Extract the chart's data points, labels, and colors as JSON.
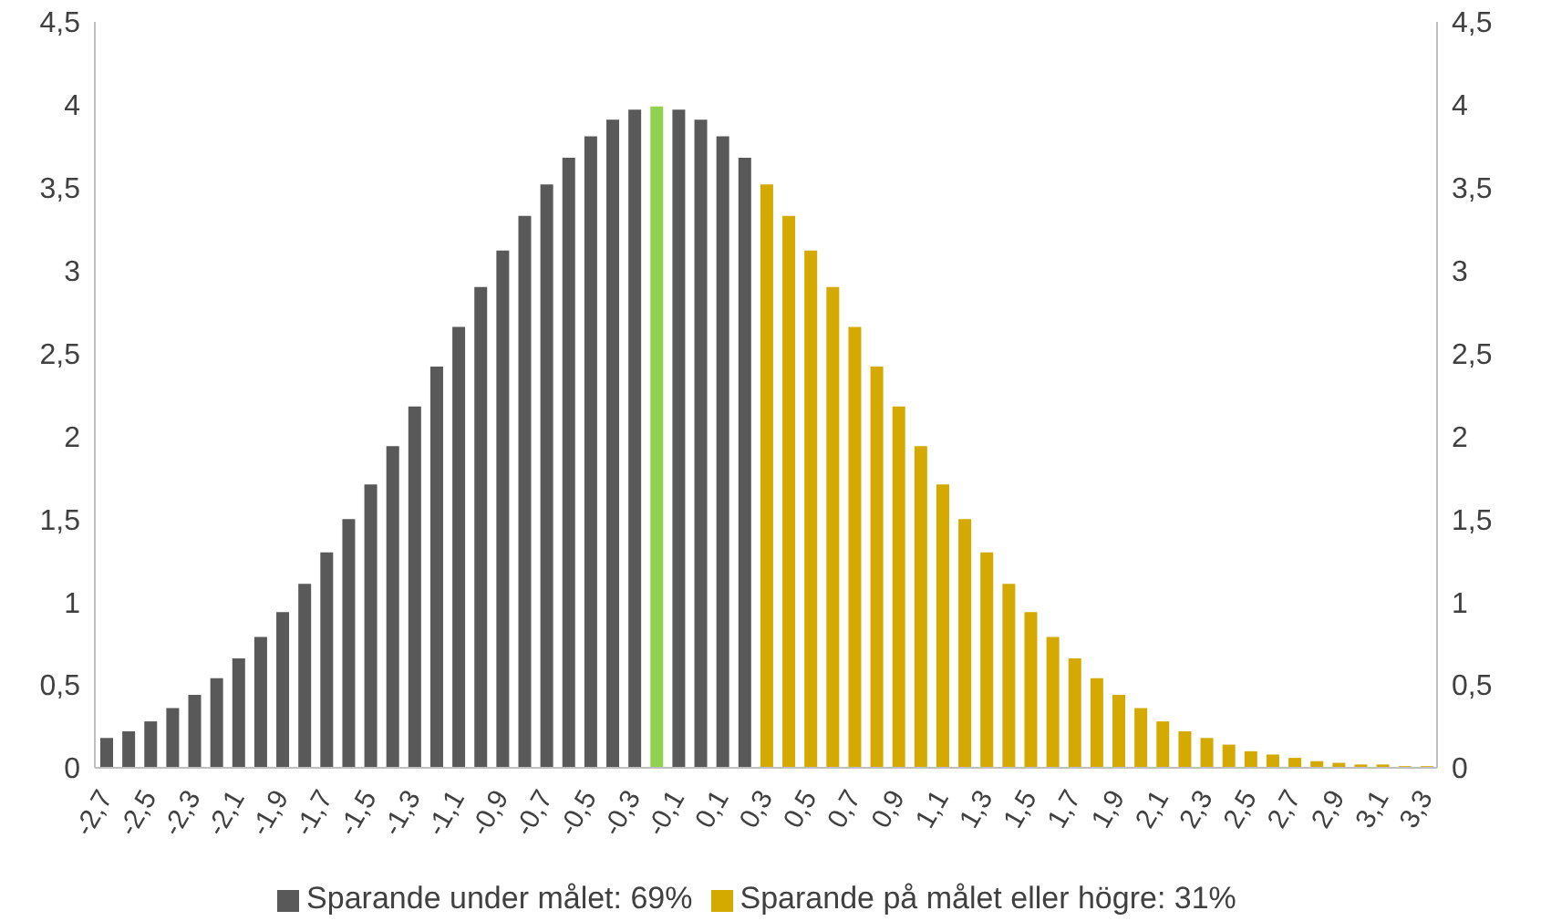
{
  "chart_data": {
    "type": "bar",
    "stacked": true,
    "legend": "bottom",
    "categories": [
      "-2,7",
      null,
      "-2,5",
      null,
      "-2,3",
      null,
      "-2,1",
      null,
      "-1,9",
      null,
      "-1,7",
      null,
      "-1,5",
      null,
      "-1,3",
      null,
      "-1,1",
      null,
      "-0,9",
      null,
      "-0,7",
      null,
      "-0,5",
      null,
      "-0,3",
      null,
      "-0,1",
      null,
      "0,1",
      null,
      "0,3",
      null,
      "0,5",
      null,
      "0,7",
      null,
      "0,9",
      null,
      "1,1",
      null,
      "1,3",
      null,
      "1,5",
      null,
      "1,7",
      null,
      "1,9",
      null,
      "2,1",
      null,
      "2,3",
      null,
      "2,5",
      null,
      "2,7",
      null,
      "2,9",
      null,
      "3,1",
      null,
      "3,3"
    ],
    "series": [
      {
        "name": "Sparande under målet: 69%",
        "color": "#595959",
        "colors": [
          "#595959",
          "#595959",
          "#595959",
          "#595959",
          "#595959",
          "#595959",
          "#595959",
          "#595959",
          "#595959",
          "#595959",
          "#595959",
          "#595959",
          "#595959",
          "#595959",
          "#595959",
          "#595959",
          "#595959",
          "#595959",
          "#595959",
          "#595959",
          "#595959",
          "#595959",
          "#595959",
          "#595959",
          "#595959",
          "#92d050",
          "#595959",
          "#595959",
          "#595959",
          "#595959",
          null,
          null,
          null,
          null,
          null,
          null,
          null,
          null,
          null,
          null,
          null,
          null,
          null,
          null,
          null,
          null,
          null,
          null,
          null,
          null,
          null,
          null,
          null,
          null,
          null,
          null,
          null,
          null,
          null,
          null,
          null
        ],
        "values": [
          0.18,
          0.22,
          0.28,
          0.36,
          0.44,
          0.54,
          0.66,
          0.79,
          0.94,
          1.11,
          1.3,
          1.5,
          1.71,
          1.94,
          2.18,
          2.42,
          2.66,
          2.9,
          3.12,
          3.33,
          3.52,
          3.68,
          3.81,
          3.91,
          3.97,
          3.99,
          3.97,
          3.91,
          3.81,
          3.68,
          null,
          null,
          null,
          null,
          null,
          null,
          null,
          null,
          null,
          null,
          null,
          null,
          null,
          null,
          null,
          null,
          null,
          null,
          null,
          null,
          null,
          null,
          null,
          null,
          null,
          null,
          null,
          null,
          null,
          null,
          null
        ]
      },
      {
        "name": "Sparande på målet eller högre: 31%",
        "color": "#d4aa00",
        "values": [
          null,
          null,
          null,
          null,
          null,
          null,
          null,
          null,
          null,
          null,
          null,
          null,
          null,
          null,
          null,
          null,
          null,
          null,
          null,
          null,
          null,
          null,
          null,
          null,
          null,
          null,
          null,
          null,
          null,
          null,
          3.52,
          3.33,
          3.12,
          2.9,
          2.66,
          2.42,
          2.18,
          1.94,
          1.71,
          1.5,
          1.3,
          1.11,
          0.94,
          0.79,
          0.66,
          0.54,
          0.44,
          0.36,
          0.28,
          0.22,
          0.18,
          0.14,
          0.1,
          0.08,
          0.06,
          0.04,
          0.03,
          0.02,
          0.02,
          0.01,
          0.01
        ]
      }
    ],
    "ylim": [
      0,
      4.5
    ],
    "yticks": [
      0,
      {
        "value": 0.5,
        "label": "0,5"
      },
      1,
      {
        "value": 1.5,
        "label": "1,5"
      },
      2,
      {
        "value": 2.5,
        "label": "2,5"
      },
      3,
      {
        "value": 3.5,
        "label": "3,5"
      },
      4,
      {
        "value": 4.5,
        "label": "4,5"
      }
    ],
    "y2lim": [
      0,
      4.5
    ],
    "y2ticks": [
      0,
      {
        "value": 0.5,
        "label": "0,5"
      },
      1,
      {
        "value": 1.5,
        "label": "1,5"
      },
      2,
      {
        "value": 2.5,
        "label": "2,5"
      },
      3,
      {
        "value": 3.5,
        "label": "3,5"
      },
      4,
      {
        "value": 4.5,
        "label": "4,5"
      }
    ]
  }
}
